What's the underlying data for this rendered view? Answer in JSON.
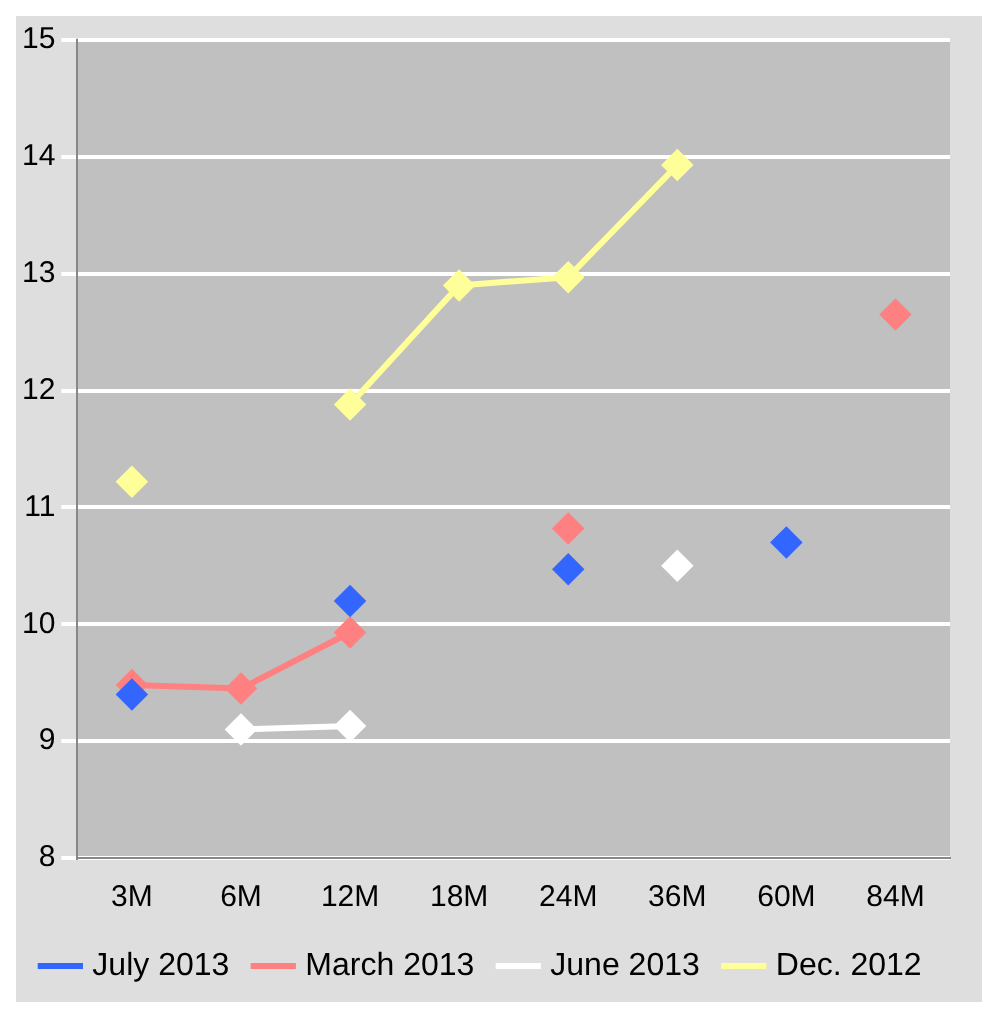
{
  "chart_data": {
    "type": "line",
    "categories": [
      "3M",
      "6M",
      "12M",
      "18M",
      "24M",
      "36M",
      "60M",
      "84M"
    ],
    "series": [
      {
        "name": "Dec. 2012",
        "color": "#ffff99",
        "values": [
          11.22,
          null,
          11.88,
          12.9,
          12.97,
          13.93,
          null,
          null
        ]
      },
      {
        "name": "June 2013",
        "color": "#ffffff",
        "values": [
          null,
          9.1,
          9.13,
          null,
          null,
          10.5,
          null,
          null
        ]
      },
      {
        "name": "March 2013",
        "color": "#ff8080",
        "values": [
          9.48,
          9.45,
          9.93,
          null,
          10.82,
          null,
          null,
          12.65
        ]
      },
      {
        "name": "July 2013",
        "type": "scatter",
        "color": "#3366ff",
        "values": [
          9.4,
          null,
          10.2,
          null,
          10.47,
          null,
          10.7,
          null
        ]
      }
    ],
    "ylim": [
      8,
      15
    ],
    "yticks": [
      8,
      9,
      10,
      11,
      12,
      13,
      14,
      15
    ],
    "grid": "y",
    "legend": "bottom",
    "marker": "diamond",
    "line_style": "solid"
  }
}
